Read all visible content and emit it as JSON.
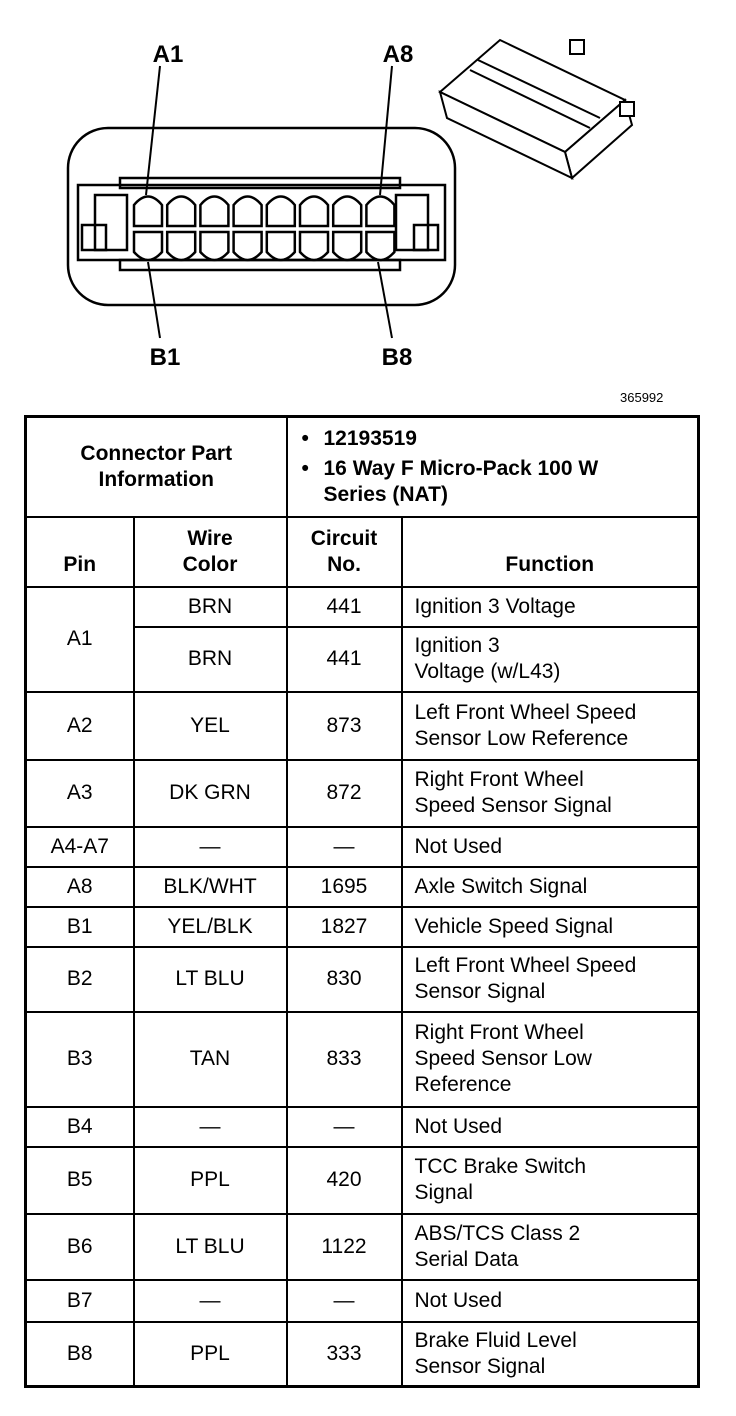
{
  "diagram": {
    "labels": {
      "a1": "A1",
      "a8": "A8",
      "b1": "B1",
      "b8": "B8"
    },
    "figure_number": "365992"
  },
  "table": {
    "connector_info": {
      "label": "Connector Part\nInformation",
      "items": [
        "12193519",
        "16 Way F Micro-Pack 100 W\nSeries (NAT)"
      ]
    },
    "columns": [
      "Pin",
      "Wire\nColor",
      "Circuit\nNo.",
      "Function"
    ],
    "rows": [
      {
        "pin": "A1",
        "entries": [
          {
            "wire_color": "BRN",
            "circuit": "441",
            "function": "Ignition 3 Voltage"
          },
          {
            "wire_color": "BRN",
            "circuit": "441",
            "function": "Ignition 3\nVoltage (w/L43)"
          }
        ]
      },
      {
        "pin": "A2",
        "entries": [
          {
            "wire_color": "YEL",
            "circuit": "873",
            "function": "Left Front Wheel Speed\nSensor Low Reference"
          }
        ]
      },
      {
        "pin": "A3",
        "entries": [
          {
            "wire_color": "DK GRN",
            "circuit": "872",
            "function": "Right Front Wheel\nSpeed Sensor Signal"
          }
        ]
      },
      {
        "pin": "A4-A7",
        "entries": [
          {
            "wire_color": "—",
            "circuit": "—",
            "function": "Not Used"
          }
        ]
      },
      {
        "pin": "A8",
        "entries": [
          {
            "wire_color": "BLK/WHT",
            "circuit": "1695",
            "function": "Axle Switch Signal"
          }
        ]
      },
      {
        "pin": "B1",
        "entries": [
          {
            "wire_color": "YEL/BLK",
            "circuit": "1827",
            "function": "Vehicle Speed Signal"
          }
        ]
      },
      {
        "pin": "B2",
        "entries": [
          {
            "wire_color": "LT BLU",
            "circuit": "830",
            "function": "Left Front Wheel Speed\nSensor Signal"
          }
        ]
      },
      {
        "pin": "B3",
        "entries": [
          {
            "wire_color": "TAN",
            "circuit": "833",
            "function": "Right Front Wheel\nSpeed Sensor Low\nReference"
          }
        ]
      },
      {
        "pin": "B4",
        "entries": [
          {
            "wire_color": "—",
            "circuit": "—",
            "function": "Not Used"
          }
        ]
      },
      {
        "pin": "B5",
        "entries": [
          {
            "wire_color": "PPL",
            "circuit": "420",
            "function": "TCC Brake Switch\nSignal"
          }
        ]
      },
      {
        "pin": "B6",
        "entries": [
          {
            "wire_color": "LT BLU",
            "circuit": "1122",
            "function": "ABS/TCS Class 2\nSerial Data"
          }
        ]
      },
      {
        "pin": "B7",
        "entries": [
          {
            "wire_color": "—",
            "circuit": "—",
            "function": "Not Used"
          }
        ]
      },
      {
        "pin": "B8",
        "entries": [
          {
            "wire_color": "PPL",
            "circuit": "333",
            "function": "Brake Fluid Level\nSensor Signal"
          }
        ]
      }
    ]
  }
}
